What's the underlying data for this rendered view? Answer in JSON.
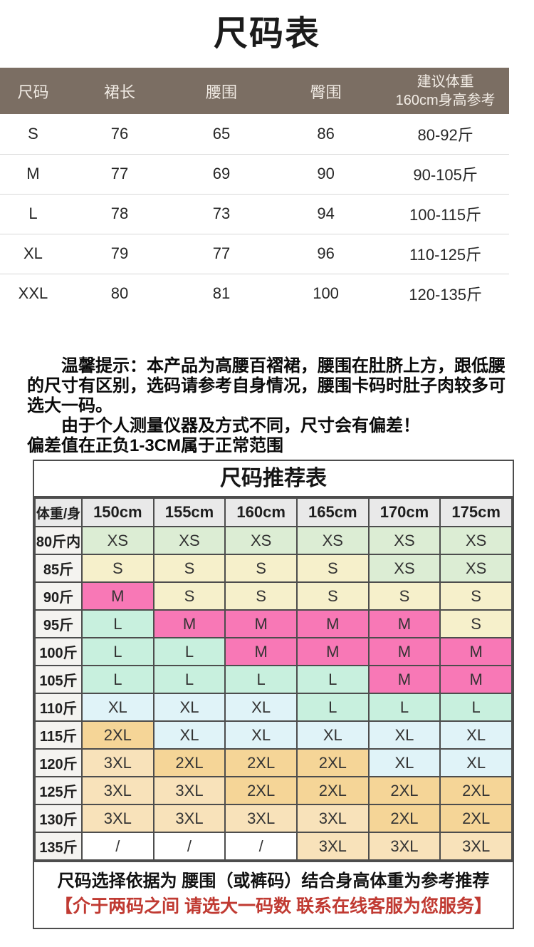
{
  "size_table": {
    "title": "尺码表",
    "headers": [
      "尺码",
      "裙长",
      "腰围",
      "臀围"
    ],
    "weight_header_line1": "建议体重",
    "weight_header_line2": "160cm身高参考",
    "rows": [
      [
        "S",
        "76",
        "65",
        "86",
        "80-92斤"
      ],
      [
        "M",
        "77",
        "69",
        "90",
        "90-105斤"
      ],
      [
        "L",
        "78",
        "73",
        "94",
        "100-115斤"
      ],
      [
        "XL",
        "79",
        "77",
        "96",
        "110-125斤"
      ],
      [
        "XXL",
        "80",
        "81",
        "100",
        "120-135斤"
      ]
    ]
  },
  "tips": {
    "line1": "温馨提示：本产品为高腰百褶裙，腰围在肚脐上方，跟低腰",
    "line2": "的尺寸有区别，选码请参考自身情况，腰围卡码时肚子肉较多可",
    "line3": "选大一码。",
    "line4": "由于个人测量仪器及方式不同，尺寸会有偏差！",
    "line5": "偏差值在正负1-3CM属于正常范围"
  },
  "recommend_table": {
    "title": "尺码推荐表",
    "corner_label": "体重/身",
    "height_headers": [
      "150cm",
      "155cm",
      "160cm",
      "165cm",
      "170cm",
      "175cm"
    ],
    "rows": [
      {
        "label": "80斤内",
        "cells": [
          [
            "XS",
            "green"
          ],
          [
            "XS",
            "green"
          ],
          [
            "XS",
            "green"
          ],
          [
            "XS",
            "green"
          ],
          [
            "XS",
            "green"
          ],
          [
            "XS",
            "green"
          ]
        ]
      },
      {
        "label": "85斤",
        "cells": [
          [
            "S",
            "yellow"
          ],
          [
            "S",
            "yellow"
          ],
          [
            "S",
            "yellow"
          ],
          [
            "S",
            "yellow"
          ],
          [
            "XS",
            "green"
          ],
          [
            "XS",
            "green"
          ]
        ]
      },
      {
        "label": "90斤",
        "cells": [
          [
            "M",
            "pink"
          ],
          [
            "S",
            "yellow"
          ],
          [
            "S",
            "yellow"
          ],
          [
            "S",
            "yellow"
          ],
          [
            "S",
            "yellow"
          ],
          [
            "S",
            "yellow"
          ]
        ]
      },
      {
        "label": "95斤",
        "cells": [
          [
            "L",
            "mint"
          ],
          [
            "M",
            "pink"
          ],
          [
            "M",
            "pink"
          ],
          [
            "M",
            "pink"
          ],
          [
            "M",
            "pink"
          ],
          [
            "S",
            "yellow"
          ]
        ]
      },
      {
        "label": "100斤",
        "cells": [
          [
            "L",
            "mint"
          ],
          [
            "L",
            "mint"
          ],
          [
            "M",
            "pink"
          ],
          [
            "M",
            "pink"
          ],
          [
            "M",
            "pink"
          ],
          [
            "M",
            "pink"
          ]
        ]
      },
      {
        "label": "105斤",
        "cells": [
          [
            "L",
            "mint"
          ],
          [
            "L",
            "mint"
          ],
          [
            "L",
            "mint"
          ],
          [
            "L",
            "mint"
          ],
          [
            "M",
            "pink"
          ],
          [
            "M",
            "pink"
          ]
        ]
      },
      {
        "label": "110斤",
        "cells": [
          [
            "XL",
            "blue"
          ],
          [
            "XL",
            "blue"
          ],
          [
            "XL",
            "blue"
          ],
          [
            "L",
            "mint"
          ],
          [
            "L",
            "mint"
          ],
          [
            "L",
            "mint"
          ]
        ]
      },
      {
        "label": "115斤",
        "cells": [
          [
            "2XL",
            "orange"
          ],
          [
            "XL",
            "blue"
          ],
          [
            "XL",
            "blue"
          ],
          [
            "XL",
            "blue"
          ],
          [
            "XL",
            "blue"
          ],
          [
            "XL",
            "blue"
          ]
        ]
      },
      {
        "label": "120斤",
        "cells": [
          [
            "3XL",
            "peach"
          ],
          [
            "2XL",
            "orange"
          ],
          [
            "2XL",
            "orange"
          ],
          [
            "2XL",
            "orange"
          ],
          [
            "XL",
            "blue"
          ],
          [
            "XL",
            "blue"
          ]
        ]
      },
      {
        "label": "125斤",
        "cells": [
          [
            "3XL",
            "peach"
          ],
          [
            "3XL",
            "peach"
          ],
          [
            "2XL",
            "orange"
          ],
          [
            "2XL",
            "orange"
          ],
          [
            "2XL",
            "orange"
          ],
          [
            "2XL",
            "orange"
          ]
        ]
      },
      {
        "label": "130斤",
        "cells": [
          [
            "3XL",
            "peach"
          ],
          [
            "3XL",
            "peach"
          ],
          [
            "3XL",
            "peach"
          ],
          [
            "3XL",
            "peach"
          ],
          [
            "2XL",
            "orange"
          ],
          [
            "2XL",
            "orange"
          ]
        ]
      },
      {
        "label": "135斤",
        "cells": [
          [
            "/",
            "white"
          ],
          [
            "/",
            "white"
          ],
          [
            "/",
            "white"
          ],
          [
            "3XL",
            "peach"
          ],
          [
            "3XL",
            "peach"
          ],
          [
            "3XL",
            "peach"
          ]
        ]
      }
    ],
    "note_black": "尺码选择依据为 腰围（或裤码）结合身高体重为参考推荐",
    "note_red": "【介于两码之间 请选大一码数 联系在线客服为您服务】"
  },
  "colors": {
    "header_brown": "#7b6e63",
    "border_dark": "#4d4d4d",
    "head_gray": "#e9e9e9",
    "label_gray": "#f4f3f0",
    "green": "#dcedd4",
    "yellow": "#f6f0cb",
    "pink": "#f878b6",
    "mint": "#c8f0de",
    "blue": "#e0f3f8",
    "orange": "#f5d597",
    "peach": "#f8e2ba",
    "note_red_color": "#c03a32"
  }
}
